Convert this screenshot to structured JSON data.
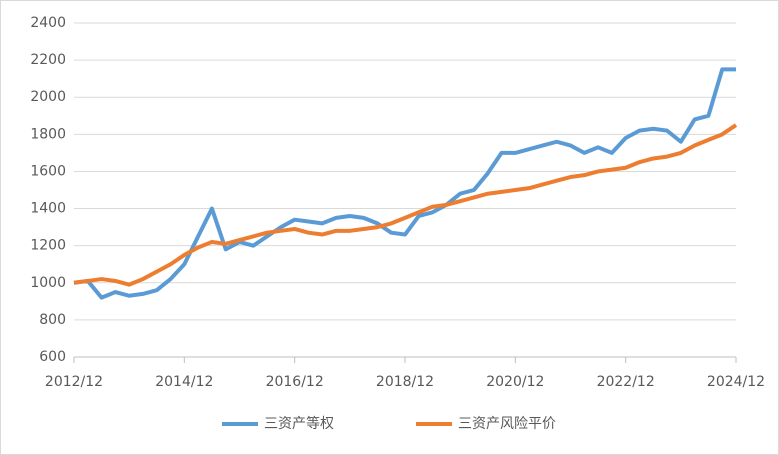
{
  "chart_data": {
    "type": "line",
    "x": [
      "2012/12",
      "2013/03",
      "2013/06",
      "2013/09",
      "2013/12",
      "2014/03",
      "2014/06",
      "2014/09",
      "2014/12",
      "2015/03",
      "2015/06",
      "2015/09",
      "2015/12",
      "2016/03",
      "2016/06",
      "2016/09",
      "2016/12",
      "2017/03",
      "2017/06",
      "2017/09",
      "2017/12",
      "2018/03",
      "2018/06",
      "2018/09",
      "2018/12",
      "2019/03",
      "2019/06",
      "2019/09",
      "2019/12",
      "2020/03",
      "2020/06",
      "2020/09",
      "2020/12",
      "2021/03",
      "2021/06",
      "2021/09",
      "2021/12",
      "2022/03",
      "2022/06",
      "2022/09",
      "2022/12",
      "2023/03",
      "2023/06",
      "2023/09",
      "2023/12",
      "2024/03",
      "2024/06",
      "2024/09",
      "2024/12"
    ],
    "series": [
      {
        "name": "三资产等权",
        "color": "#5b9bd5",
        "values": [
          1000,
          1010,
          920,
          950,
          930,
          940,
          960,
          1020,
          1100,
          1250,
          1400,
          1180,
          1220,
          1200,
          1250,
          1300,
          1340,
          1330,
          1320,
          1350,
          1360,
          1350,
          1320,
          1270,
          1260,
          1360,
          1380,
          1420,
          1480,
          1500,
          1590,
          1700,
          1700,
          1720,
          1740,
          1760,
          1740,
          1700,
          1730,
          1700,
          1780,
          1820,
          1830,
          1820,
          1760,
          1880,
          1900,
          2150,
          2150
        ]
      },
      {
        "name": "三资产风险平价",
        "color": "#ed7d31",
        "values": [
          1000,
          1010,
          1020,
          1010,
          990,
          1020,
          1060,
          1100,
          1150,
          1190,
          1220,
          1210,
          1230,
          1250,
          1270,
          1280,
          1290,
          1270,
          1260,
          1280,
          1280,
          1290,
          1300,
          1320,
          1350,
          1380,
          1410,
          1420,
          1440,
          1460,
          1480,
          1490,
          1500,
          1510,
          1530,
          1550,
          1570,
          1580,
          1600,
          1610,
          1620,
          1650,
          1670,
          1680,
          1700,
          1740,
          1770,
          1800,
          1850
        ]
      }
    ],
    "ylim": [
      600,
      2400
    ],
    "yticks": [
      600,
      800,
      1000,
      1200,
      1400,
      1600,
      1800,
      2000,
      2200,
      2400
    ],
    "xlim": [
      "2012/12",
      "2024/12"
    ],
    "xticks": [
      "2012/12",
      "2014/12",
      "2016/12",
      "2018/12",
      "2020/12",
      "2022/12",
      "2024/12"
    ],
    "grid": true,
    "legend": "bottom"
  }
}
